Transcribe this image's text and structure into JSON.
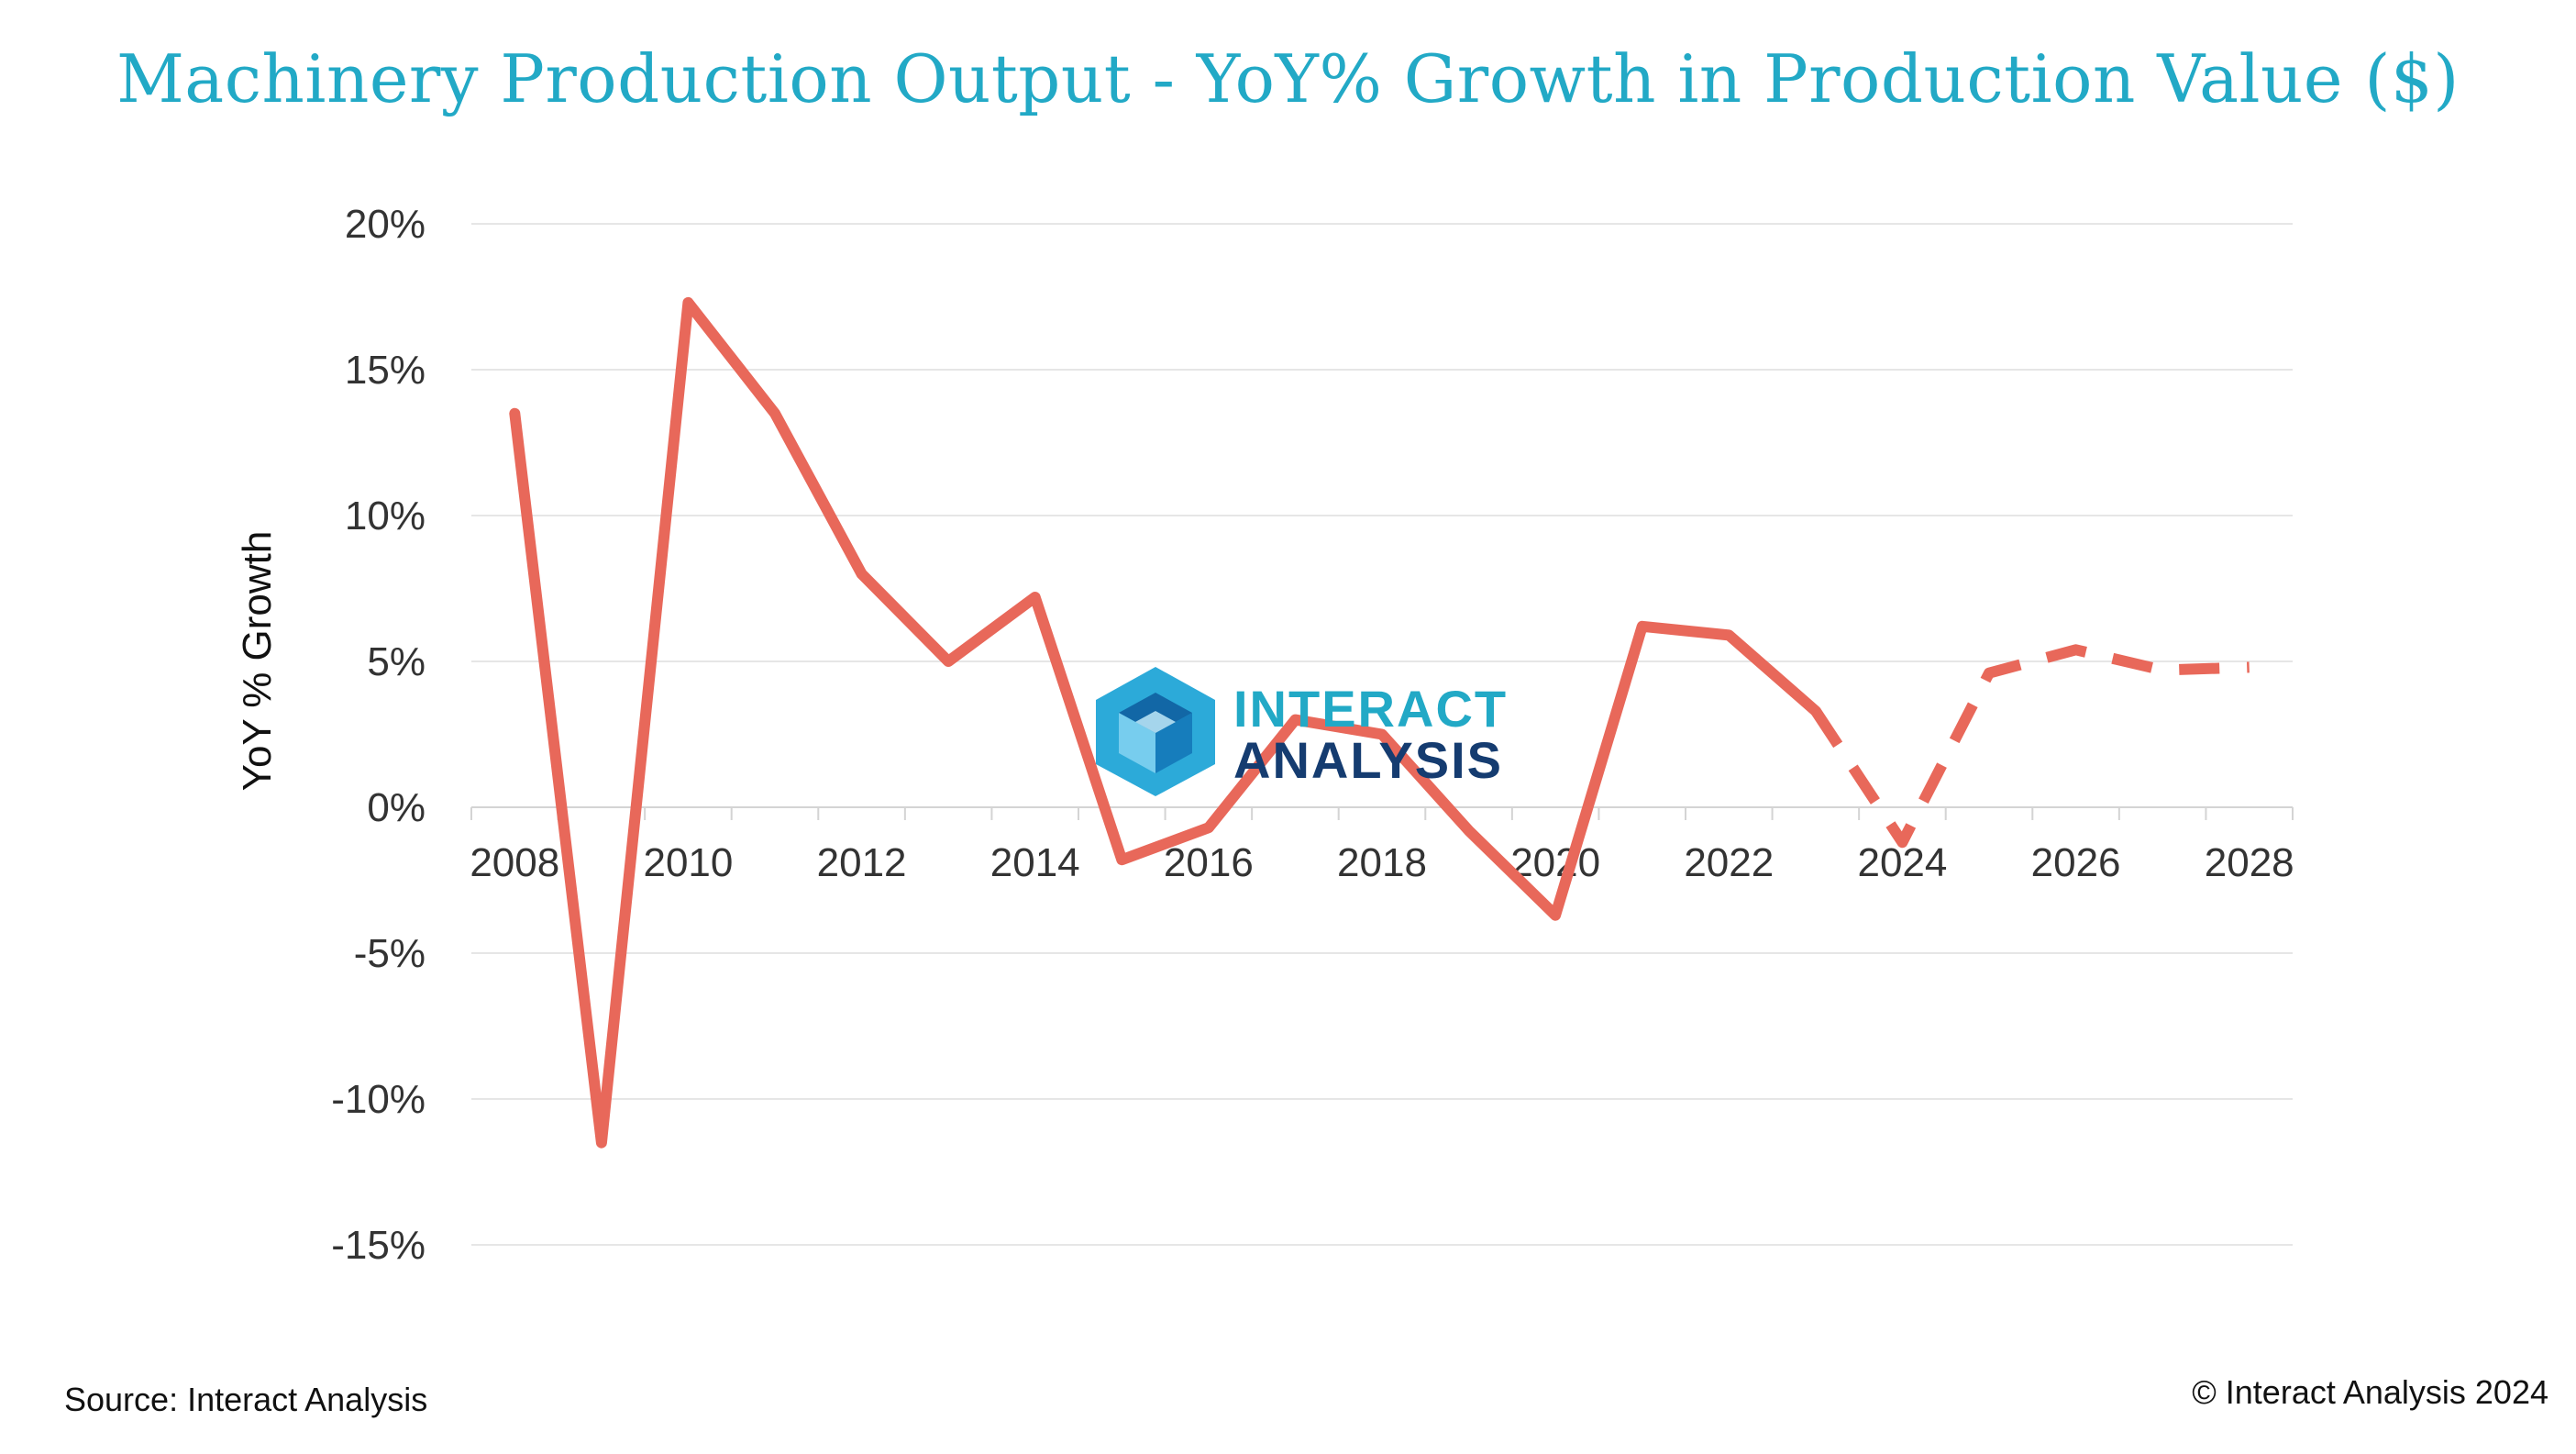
{
  "title": "Machinery Production Output - YoY% Growth in Production Value ($)",
  "footer": {
    "source": "Source: Interact Analysis",
    "copyright": "© Interact Analysis 2024"
  },
  "watermark": {
    "line1": "INTERACT",
    "line2": "ANALYSIS"
  },
  "colors": {
    "title": "#22a9c6",
    "line": "#e8685a",
    "grid": "#e6e6e6",
    "axis_text": "#333333"
  },
  "chart_data": {
    "type": "line",
    "title": "Machinery Production Output - YoY% Growth in Production Value ($)",
    "xlabel": "",
    "ylabel": "YoY % Growth",
    "x": [
      2008,
      2009,
      2010,
      2011,
      2012,
      2013,
      2014,
      2015,
      2016,
      2017,
      2018,
      2019,
      2020,
      2021,
      2022,
      2023,
      2024,
      2025,
      2026,
      2027,
      2028
    ],
    "series": [
      {
        "name": "",
        "values": [
          13.5,
          -11.5,
          17.3,
          13.5,
          8.0,
          5.0,
          7.2,
          -1.8,
          -0.7,
          3.0,
          2.5,
          -0.8,
          -3.7,
          6.2,
          5.9,
          3.3,
          -1.2,
          4.6,
          5.4,
          4.7,
          4.8
        ],
        "solid_until": 2023,
        "dashed_after": 2023
      }
    ],
    "ylim": [
      -15,
      20
    ],
    "yticks": [
      20,
      15,
      10,
      5,
      0,
      -5,
      -10,
      -15
    ],
    "ytick_labels": [
      "20%",
      "15%",
      "10%",
      "5%",
      "0%",
      "-5%",
      "-10%",
      "-15%"
    ],
    "xtick_labels": [
      "2008",
      "2010",
      "2012",
      "2014",
      "2016",
      "2018",
      "2020",
      "2022",
      "2024",
      "2026",
      "2028"
    ],
    "grid": true,
    "legend": "none"
  }
}
